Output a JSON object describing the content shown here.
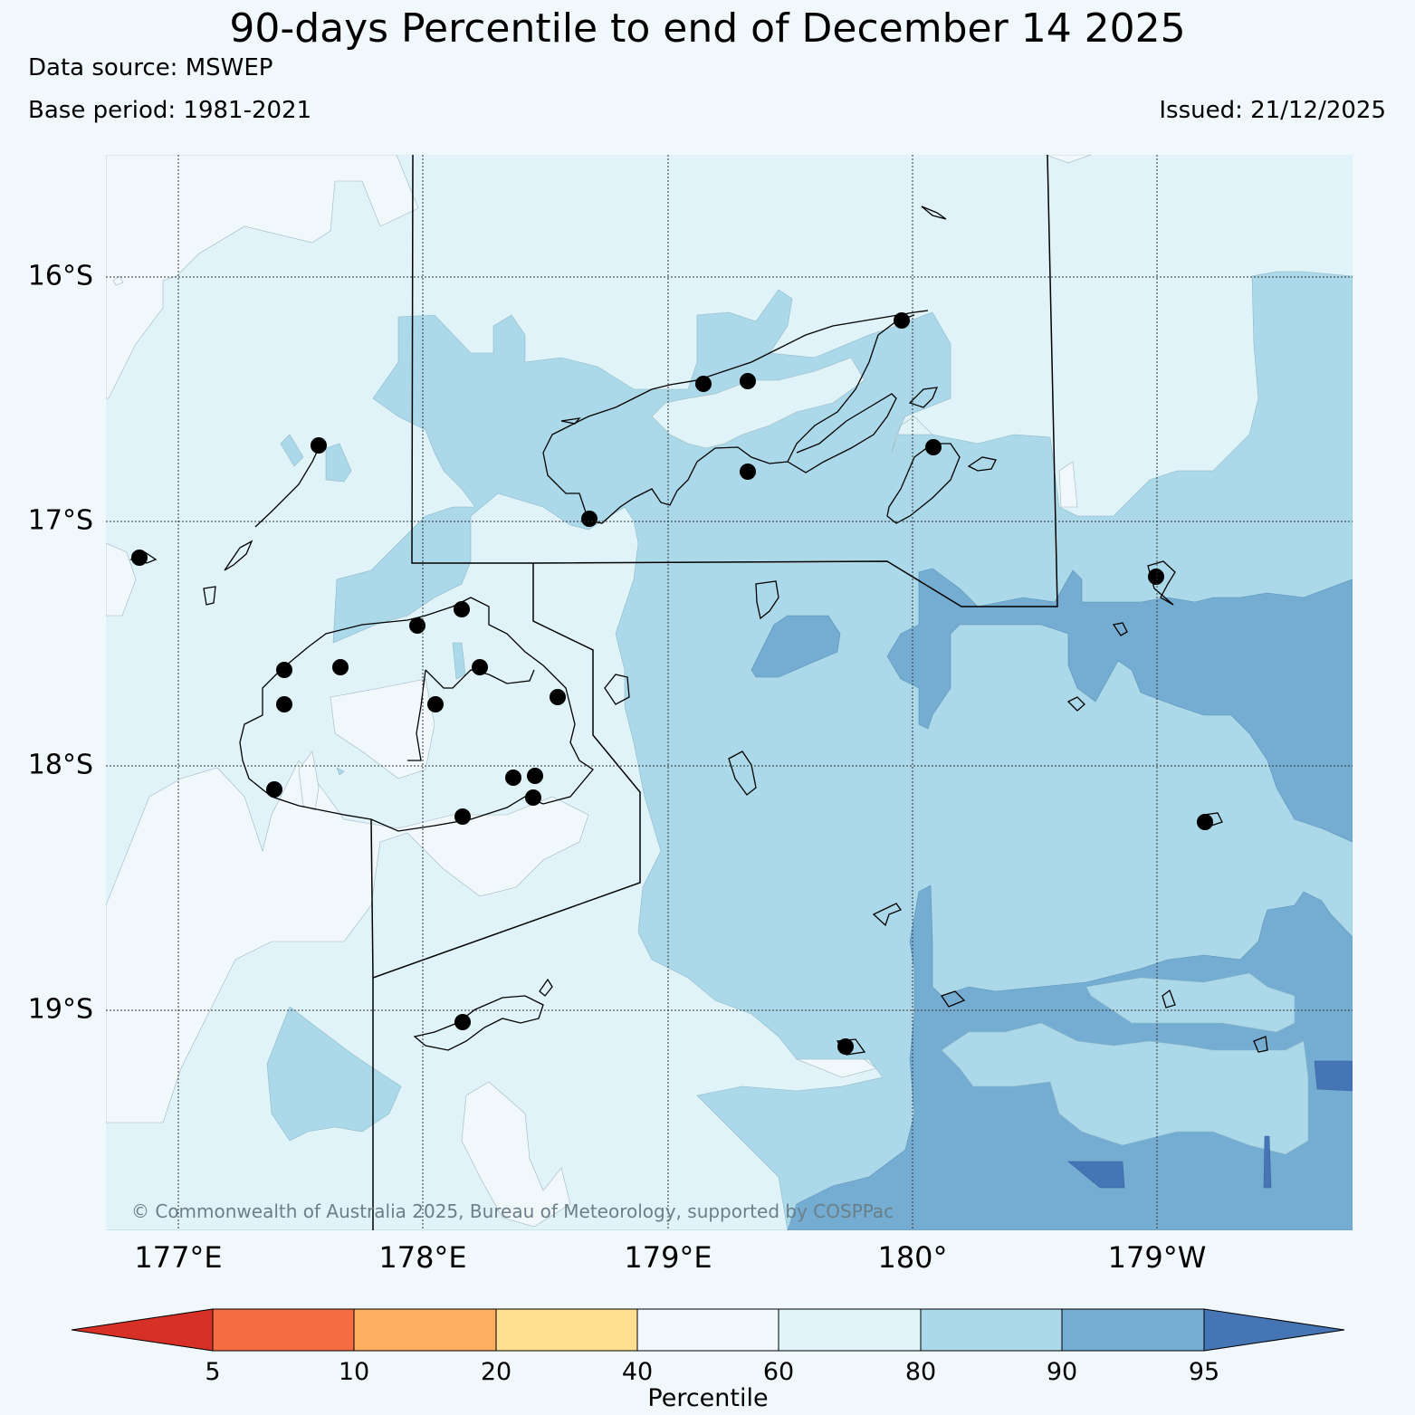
{
  "header": {
    "title": "90-days Percentile to end of December 14 2025",
    "data_source": "Data source: MSWEP",
    "base_period": "Base period: 1981-2021",
    "issued": "Issued: 21/12/2025"
  },
  "map": {
    "lat_labels": [
      "16°S",
      "17°S",
      "18°S",
      "19°S"
    ],
    "lon_labels": [
      "177°E",
      "178°E",
      "179°E",
      "180°",
      "179°W"
    ],
    "copyright": "© Commonwealth of Australia 2025, Bureau of Meteorology, supported by COSPPac"
  },
  "colorbar": {
    "label": "Percentile",
    "ticks": [
      "5",
      "10",
      "20",
      "40",
      "60",
      "80",
      "90",
      "95"
    ],
    "colors": [
      "#d73027",
      "#f46d43",
      "#fdae61",
      "#fee090",
      "#f0f8fb",
      "#e0f3f8",
      "#abd9e9",
      "#74add1",
      "#4575b4"
    ]
  },
  "colors": {
    "c60_80": "#e0f3f8",
    "c80_90": "#abd9e9",
    "c90_95": "#74add1",
    "c95": "#4575b4",
    "c40_60": "#f0f8fb"
  }
}
